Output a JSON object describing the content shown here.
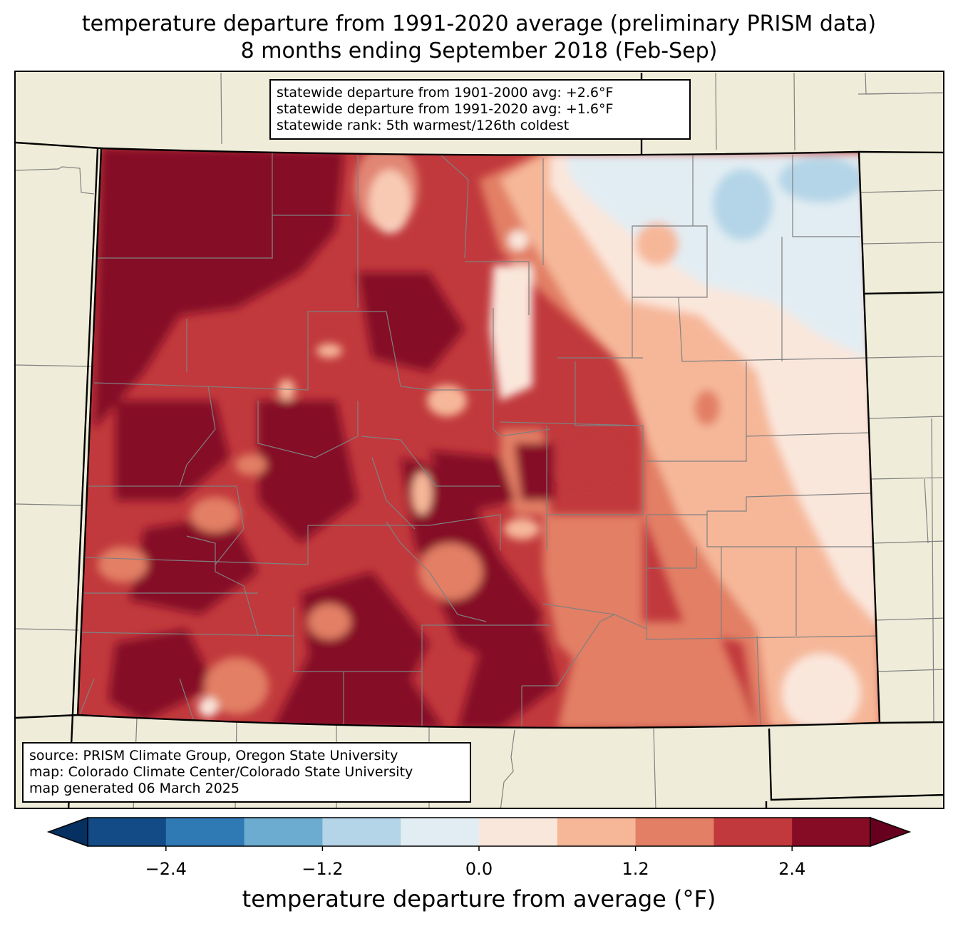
{
  "title": {
    "line1": "temperature departure from 1991-2020 average (preliminary PRISM data)",
    "line2": "8 months ending September 2018 (Feb-Sep)"
  },
  "stats": {
    "line1": "statewide departure from 1901-2000 avg: +2.6°F",
    "line2": "statewide departure from 1991-2020 avg: +1.6°F",
    "line3": "statewide rank: 5th warmest/126th coldest"
  },
  "source": {
    "line1": "source: PRISM Climate Group, Oregon State University",
    "line2": "map: Colorado Climate Center/Colorado State University",
    "line3": "map generated 06 March 2025"
  },
  "colorbar": {
    "label": "temperature departure from average (°F)",
    "ticks": [
      "−2.4",
      "−1.2",
      "0.0",
      "1.2",
      "2.4"
    ],
    "tick_values": [
      -2.4,
      -1.2,
      0.0,
      1.2,
      2.4
    ],
    "range": [
      -3.0,
      3.0
    ],
    "bins": [
      {
        "from": -3.0,
        "to": -2.4,
        "color": "#134b87"
      },
      {
        "from": -2.4,
        "to": -1.8,
        "color": "#2f79b5"
      },
      {
        "from": -1.8,
        "to": -1.2,
        "color": "#6dacd1"
      },
      {
        "from": -1.2,
        "to": -0.6,
        "color": "#b3d5e7"
      },
      {
        "from": -0.6,
        "to": 0.0,
        "color": "#e2edf3"
      },
      {
        "from": 0.0,
        "to": 0.6,
        "color": "#fae7dc"
      },
      {
        "from": 0.6,
        "to": 1.2,
        "color": "#f6b799"
      },
      {
        "from": 1.2,
        "to": 1.8,
        "color": "#e27f65"
      },
      {
        "from": 1.8,
        "to": 2.4,
        "color": "#c1393c"
      },
      {
        "from": 2.4,
        "to": 3.0,
        "color": "#860b25"
      }
    ],
    "under_color": "#053061",
    "over_color": "#67001f"
  },
  "colors": {
    "background": "#efedd9",
    "county_lines": "#808080",
    "state_lines": "#000000"
  }
}
